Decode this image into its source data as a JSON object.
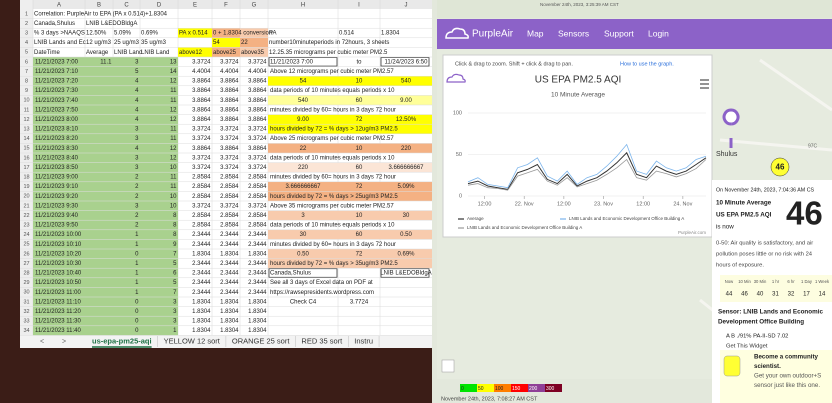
{
  "spreadsheet": {
    "columns": [
      "A",
      "B",
      "C",
      "D",
      "E",
      "F",
      "G",
      "H",
      "I",
      "J"
    ],
    "row_numbers": [
      1,
      2,
      3,
      4,
      5,
      6,
      7,
      8,
      9,
      10,
      11,
      12,
      13,
      14,
      15,
      16,
      17,
      18,
      19,
      20,
      21,
      22,
      23,
      24,
      25,
      26,
      27,
      28,
      29,
      30,
      31,
      32,
      33,
      34
    ],
    "header_rows": [
      [
        "Correlation: PurpleAir to EPA (PA x 0.514)+1.8304",
        null,
        null,
        null,
        null,
        null,
        null,
        null,
        null,
        null
      ],
      [
        "Canada,Shulus",
        "LNIB L&EDOBldgA",
        null,
        null,
        null,
        null,
        null,
        null,
        null,
        null
      ],
      [
        "% 3 days >NAAQS",
        "12.50%",
        "5.09%",
        "0.69%",
        "PA x 0.514",
        "0 + 1.8304 conversion",
        null,
        "PA",
        "0.514",
        "1.8304"
      ],
      [
        "LNIB Lands and Ec",
        "12 ug/m3",
        "25 ug/m3",
        "35 ug/m3",
        null,
        "54",
        "22",
        "number10minuteperiods in 72hours, 3 sheets",
        null,
        null
      ],
      [
        "DateTime",
        "Average",
        "LNIB Land",
        "LNIB Land",
        "above12",
        "above25",
        "above35",
        "12.25.35 micrograms per cubic meter PM2.5",
        null,
        null
      ]
    ],
    "header_fills": [
      {
        "row": 2,
        "col": 4,
        "color": "#ffff00"
      },
      {
        "row": 2,
        "col": 5,
        "color": "#f4b183"
      },
      {
        "row": 2,
        "col": 6,
        "color": "#f8cbad"
      },
      {
        "row": 3,
        "col": 5,
        "color": "#ffff00"
      },
      {
        "row": 3,
        "col": 6,
        "color": "#f4b183"
      },
      {
        "row": 4,
        "col": 4,
        "color": "#ffff00"
      },
      {
        "row": 4,
        "col": 5,
        "color": "#f4b183"
      },
      {
        "row": 4,
        "col": 6,
        "color": "#f8cbad"
      }
    ],
    "rows": [
      [
        "11/21/2023 7:00",
        "11.1",
        "3",
        "13",
        "3.3724",
        "3.3724",
        "3.3724"
      ],
      [
        "11/21/2023 7:10",
        null,
        "5",
        "14",
        "4.4004",
        "4.4004",
        "4.4004"
      ],
      [
        "11/21/2023 7:20",
        null,
        "4",
        "12",
        "3.8864",
        "3.8864",
        "3.8864"
      ],
      [
        "11/21/2023 7:30",
        null,
        "4",
        "11",
        "3.8864",
        "3.8864",
        "3.8864"
      ],
      [
        "11/21/2023 7:40",
        null,
        "4",
        "11",
        "3.8864",
        "3.8864",
        "3.8864"
      ],
      [
        "11/21/2023 7:50",
        null,
        "4",
        "12",
        "3.8864",
        "3.8864",
        "3.8864"
      ],
      [
        "11/21/2023 8:00",
        null,
        "4",
        "12",
        "3.8864",
        "3.8864",
        "3.8864"
      ],
      [
        "11/21/2023 8:10",
        null,
        "3",
        "11",
        "3.3724",
        "3.3724",
        "3.3724"
      ],
      [
        "11/21/2023 8:20",
        null,
        "3",
        "11",
        "3.3724",
        "3.3724",
        "3.3724"
      ],
      [
        "11/21/2023 8:30",
        null,
        "4",
        "12",
        "3.8864",
        "3.8864",
        "3.8864"
      ],
      [
        "11/21/2023 8:40",
        null,
        "3",
        "12",
        "3.3724",
        "3.3724",
        "3.3724"
      ],
      [
        "11/21/2023 8:50",
        null,
        "3",
        "10",
        "3.3724",
        "3.3724",
        "3.3724"
      ],
      [
        "11/21/2023 9:00",
        null,
        "2",
        "11",
        "2.8584",
        "2.8584",
        "2.8584"
      ],
      [
        "11/21/2023 9:10",
        null,
        "2",
        "11",
        "2.8584",
        "2.8584",
        "2.8584"
      ],
      [
        "11/21/2023 9:20",
        null,
        "2",
        "10",
        "2.8584",
        "2.8584",
        "2.8584"
      ],
      [
        "11/21/2023 9:30",
        null,
        "3",
        "10",
        "3.3724",
        "3.3724",
        "3.3724"
      ],
      [
        "11/21/2023 9:40",
        null,
        "2",
        "8",
        "2.8584",
        "2.8584",
        "2.8584"
      ],
      [
        "11/21/2023 9:50",
        null,
        "2",
        "8",
        "2.8584",
        "2.8584",
        "2.8584"
      ],
      [
        "11/21/2023 10:00",
        null,
        "1",
        "8",
        "2.3444",
        "2.3444",
        "2.3444"
      ],
      [
        "11/21/2023 10:10",
        null,
        "1",
        "9",
        "2.3444",
        "2.3444",
        "2.3444"
      ],
      [
        "11/21/2023 10:20",
        null,
        "0",
        "7",
        "1.8304",
        "1.8304",
        "1.8304"
      ],
      [
        "11/21/2023 10:30",
        null,
        "1",
        "5",
        "2.3444",
        "2.3444",
        "2.3444"
      ],
      [
        "11/21/2023 10:40",
        null,
        "1",
        "6",
        "2.3444",
        "2.3444",
        "2.3444"
      ],
      [
        "11/21/2023 10:50",
        null,
        "1",
        "5",
        "2.3444",
        "2.3444",
        "2.3444"
      ],
      [
        "11/21/2023 11:00",
        null,
        "1",
        "7",
        "2.3444",
        "2.3444",
        "2.3444"
      ],
      [
        "11/21/2023 11:10",
        null,
        "0",
        "3",
        "1.8304",
        "1.8304",
        "1.8304"
      ],
      [
        "11/21/2023 11:20",
        null,
        "0",
        "3",
        "1.8304",
        "1.8304",
        "1.8304"
      ],
      [
        "11/21/2023 11:30",
        null,
        "0",
        "3",
        "1.8304",
        "1.8304",
        "1.8304"
      ],
      [
        "11/21/2023 11:40",
        null,
        "0",
        "1",
        "1.8304",
        "1.8304",
        "1.8304"
      ]
    ],
    "notes": [
      {
        "cells": [
          "11/21/2023 7:00",
          "to",
          "11/24/2023 6:50"
        ],
        "box": true
      },
      {
        "cells": [
          "Above 12 micrograms per cubic meter PM2.57",
          null,
          null
        ]
      },
      {
        "cells": [
          "54",
          "10",
          "540"
        ],
        "fill": "#ffff00"
      },
      {
        "cells": [
          "data periods of 10 minutes equals periods x 10",
          null,
          null
        ]
      },
      {
        "cells": [
          "540",
          "60",
          "9.00"
        ],
        "fill": "#ffff99"
      },
      {
        "cells": [
          "minutes divided by 60= hours in 3 days 72 hour",
          null,
          null
        ]
      },
      {
        "cells": [
          "9.00",
          "72",
          "12.50%"
        ],
        "fill": "#ffff00"
      },
      {
        "cells": [
          "hours divided by 72 = % days > 12ug/m3 PM2.5",
          null,
          null
        ],
        "fill": "#ffff00"
      },
      {
        "cells": [
          "Above 25 micrograms per cubic meter PM2.57",
          null,
          null
        ]
      },
      {
        "cells": [
          "22",
          "10",
          "220"
        ],
        "fill": "#f4b183"
      },
      {
        "cells": [
          "data periods of 10 minutes equals periods x 10",
          null,
          null
        ]
      },
      {
        "cells": [
          "220",
          "60",
          "3.666666667"
        ],
        "fill": "#fbe5d6"
      },
      {
        "cells": [
          "minutes divided by 60= hours in 3 days 72 hour",
          null,
          null
        ]
      },
      {
        "cells": [
          "3.666666667",
          "72",
          "5.09%"
        ],
        "fill": "#f4b183"
      },
      {
        "cells": [
          "hours divided by 72 = % days > 25ug/m3 PM2.5",
          null,
          null
        ],
        "fill": "#f4b183"
      },
      {
        "cells": [
          "Above 35 micrograms per cubic meter PM2.57",
          null,
          null
        ]
      },
      {
        "cells": [
          "3",
          "10",
          "30"
        ],
        "fill": "#f8cbad"
      },
      {
        "cells": [
          "data periods of 10 minutes equals periods x 10",
          null,
          null
        ]
      },
      {
        "cells": [
          "30",
          "60",
          "0.50"
        ],
        "fill": "#f8cbad"
      },
      {
        "cells": [
          "minutes divided by 60= hours in 3 days 72 hour",
          null,
          null
        ]
      },
      {
        "cells": [
          "0.50",
          "72",
          "0.69%"
        ],
        "fill": "#f8cbad"
      },
      {
        "cells": [
          "hours divided by 72 = % days > 35ug/m3 PM2.5",
          null,
          null
        ],
        "fill": "#f8cbad"
      },
      {
        "cells": [
          "Canada,Shulus",
          null,
          "LNIB L&EDOBldgA"
        ],
        "box": true
      },
      {
        "cells": [
          "See all 3 days of Excel data on PDF at",
          null,
          null
        ]
      },
      {
        "cells": [
          "https://rawsepresidents.wordpress.com",
          null,
          null
        ]
      },
      {
        "cells": [
          "Check C4",
          "3.7724",
          null
        ]
      }
    ],
    "tabs": [
      "us-epa-pm25-aqi",
      "YELLOW 12 sort",
      "ORANGE 25 sort",
      "RED 35 sort",
      "Instru"
    ]
  },
  "purpleair": {
    "top_timestamp": "November 24th, 2023, 3:25:39 AM CST",
    "brand": "PurpleAir",
    "nav": [
      "Map",
      "Sensors",
      "Support",
      "Login"
    ],
    "hint": "Click & drag to zoom. Shift + click & drag to pan.",
    "hint_link": "How to use the graph.",
    "place": "Shulus",
    "pin_value": "46",
    "road": "97C",
    "panel": {
      "timestamp": "On November 24th, 2023, 7:04:36 AM CS",
      "avg": "10 Minute Average",
      "metric": "US EPA PM2.5 AQI",
      "is_now": "is now",
      "value": "46",
      "desc": [
        "0-50: Air quality is satisfactory, and air",
        "pollution poses little or no risk with 24",
        "hours of exposure."
      ],
      "periods": [
        "Now",
        "10 Min",
        "30 Min",
        "1 hr",
        "6 hr",
        "1 Day",
        "1 Week"
      ],
      "period_values": [
        "44",
        "46",
        "40",
        "31",
        "32",
        "17",
        "14"
      ],
      "sensor": [
        "Sensor: LNIB Lands and Economic",
        "Development Office Building"
      ],
      "sensor_info": "A B ./91% PA-II-SD 7.02",
      "widget": "Get This Widget",
      "promo": [
        "Become a community",
        "scientist.",
        "Get your own outdoor+S",
        "sensor just like this one."
      ]
    },
    "scale_labels": [
      "0",
      "50",
      "100",
      "150",
      "200",
      "300"
    ],
    "bottom_timestamp": "November 24th, 2023, 7:08:27 AM CST"
  },
  "chart_data": {
    "type": "line",
    "title": "US EPA PM2.5 AQI",
    "subtitle": "10 Minute Average",
    "credit": "PurpleAir.com",
    "xlim": [
      0,
      72
    ],
    "xticks": [
      {
        "value": 5,
        "label": "12:00"
      },
      {
        "value": 17,
        "label": "22. Nov"
      },
      {
        "value": 29,
        "label": "12:00"
      },
      {
        "value": 41,
        "label": "23. Nov"
      },
      {
        "value": 53,
        "label": "12:00"
      },
      {
        "value": 65,
        "label": "24. Nov"
      }
    ],
    "ylim": [
      0,
      100
    ],
    "yticks": [
      0,
      50,
      100
    ],
    "grid": true,
    "x": [
      0,
      3,
      6,
      9,
      12,
      15,
      18,
      21,
      24,
      27,
      30,
      33,
      36,
      39,
      42,
      45,
      48,
      51,
      54,
      57,
      60,
      63,
      66,
      69,
      72
    ],
    "series": [
      {
        "name": "Average",
        "color": "#333333",
        "values": [
          15,
          18,
          12,
          10,
          8,
          28,
          32,
          38,
          20,
          15,
          26,
          12,
          18,
          22,
          30,
          40,
          52,
          26,
          22,
          36,
          30,
          26,
          30,
          38,
          46
        ]
      },
      {
        "name": "LNIB Lands and Economic Development Office Building A",
        "color": "#7cb5ec",
        "values": [
          17,
          22,
          14,
          12,
          10,
          34,
          38,
          46,
          24,
          18,
          30,
          14,
          22,
          26,
          36,
          48,
          62,
          30,
          26,
          42,
          34,
          30,
          34,
          44,
          48
        ]
      },
      {
        "name": "LNIB Lands and Economic Development Office Building A",
        "color": "#999999",
        "values": [
          13,
          15,
          10,
          9,
          7,
          24,
          28,
          32,
          18,
          13,
          22,
          11,
          15,
          19,
          26,
          34,
          44,
          22,
          19,
          30,
          27,
          23,
          27,
          33,
          44
        ]
      }
    ]
  }
}
